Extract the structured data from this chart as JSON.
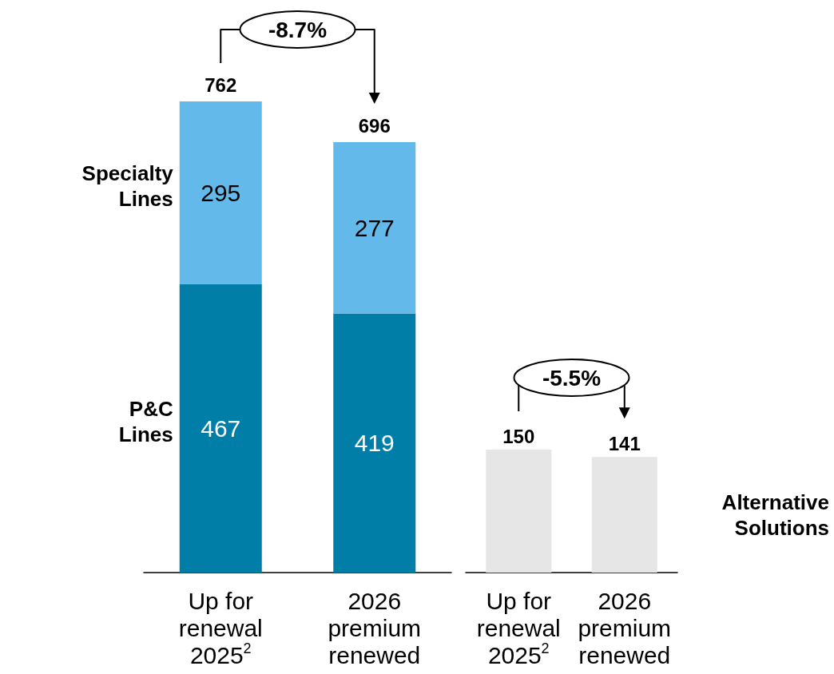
{
  "chart_data": [
    {
      "type": "bar",
      "stacked": true,
      "categories": [
        "Up for renewal 2025$^{2}$",
        "2026 premium renewed"
      ],
      "series": [
        {
          "name": "P&C Lines",
          "color": "#007ea7",
          "values": [
            467,
            419
          ]
        },
        {
          "name": "Specialty Lines",
          "color": "#63b9e9",
          "values": [
            295,
            277
          ]
        }
      ],
      "data_labels": true,
      "totals": [
        "762",
        "696"
      ],
      "annotations": [
        "-8.7%"
      ],
      "tick_labels": "x"
    },
    {
      "type": "bar",
      "categories": [
        "Up for renewal 2025$^{2}$",
        "2026 premium renewed"
      ],
      "series": [
        {
          "name": "Alternative Solutions",
          "color": "#e6e6e6",
          "values": [
            150,
            141
          ]
        }
      ],
      "data_labels": true,
      "annotations": [
        "-5.5%"
      ],
      "tick_labels": "x"
    }
  ]
}
